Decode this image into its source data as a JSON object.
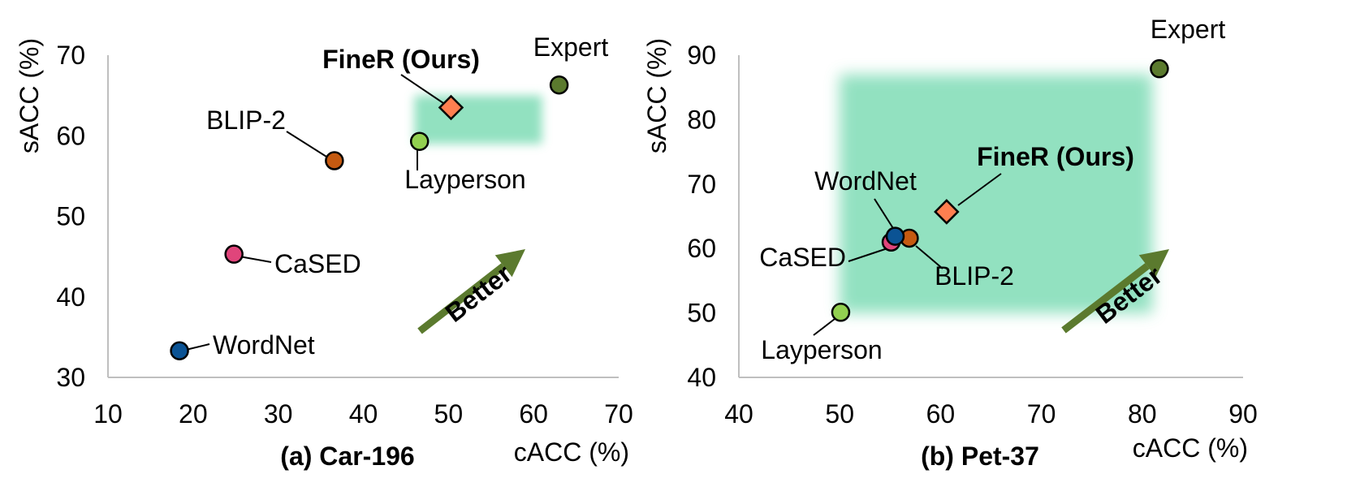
{
  "colors": {
    "expert": "#5b7a2e",
    "finer": "#ff7f50",
    "blip2": "#c55a11",
    "layperson": "#92d050",
    "cased": "#e0457b",
    "wordnet": "#0b5394",
    "region": "#7fdcb6",
    "arrow": "#5b7a2e",
    "axis": "#bfbfbf"
  },
  "chart_data": [
    {
      "type": "scatter",
      "caption": "(a) Car-196",
      "xlabel": "cACC (%)",
      "ylabel": "sACC (%)",
      "xlim": [
        10,
        70
      ],
      "ylim": [
        30,
        70
      ],
      "xticks": [
        "10",
        "20",
        "30",
        "40",
        "50",
        "60",
        "70"
      ],
      "yticks": [
        "30",
        "40",
        "50",
        "60",
        "70"
      ],
      "highlight_region": {
        "x": [
          46,
          61
        ],
        "y": [
          59,
          65
        ]
      },
      "arrow_label": "Better",
      "points": [
        {
          "name": "Expert",
          "x": 63,
          "y": 66.3,
          "marker": "circle",
          "color_key": "expert",
          "bold": false
        },
        {
          "name": "FineR (Ours)",
          "x": 50.3,
          "y": 63.5,
          "marker": "diamond",
          "color_key": "finer",
          "bold": true
        },
        {
          "name": "BLIP-2",
          "x": 36.6,
          "y": 56.9,
          "marker": "circle",
          "color_key": "blip2",
          "bold": false
        },
        {
          "name": "Layperson",
          "x": 46.6,
          "y": 59.3,
          "marker": "circle",
          "color_key": "layperson",
          "bold": false
        },
        {
          "name": "CaSED",
          "x": 24.8,
          "y": 45.3,
          "marker": "circle",
          "color_key": "cased",
          "bold": false
        },
        {
          "name": "WordNet",
          "x": 18.4,
          "y": 33.3,
          "marker": "circle",
          "color_key": "wordnet",
          "bold": false
        }
      ]
    },
    {
      "type": "scatter",
      "caption": "(b) Pet-37",
      "xlabel": "cACC (%)",
      "ylabel": "sACC (%)",
      "xlim": [
        40,
        90
      ],
      "ylim": [
        40,
        90
      ],
      "xticks": [
        "40",
        "50",
        "60",
        "70",
        "80",
        "90"
      ],
      "yticks": [
        "40",
        "50",
        "60",
        "70",
        "80",
        "90"
      ],
      "highlight_region": {
        "x": [
          50,
          81
        ],
        "y": [
          50,
          87
        ]
      },
      "arrow_label": "Better",
      "points": [
        {
          "name": "Expert",
          "x": 81.7,
          "y": 87.9,
          "marker": "circle",
          "color_key": "expert",
          "bold": false
        },
        {
          "name": "FineR (Ours)",
          "x": 60.6,
          "y": 65.7,
          "marker": "diamond",
          "color_key": "finer",
          "bold": true
        },
        {
          "name": "BLIP-2",
          "x": 56.9,
          "y": 61.6,
          "marker": "circle",
          "color_key": "blip2",
          "bold": false
        },
        {
          "name": "Layperson",
          "x": 50.1,
          "y": 50.1,
          "marker": "circle",
          "color_key": "layperson",
          "bold": false
        },
        {
          "name": "CaSED",
          "x": 55.1,
          "y": 61.0,
          "marker": "circle",
          "color_key": "cased",
          "bold": false
        },
        {
          "name": "WordNet",
          "x": 55.5,
          "y": 61.9,
          "marker": "circle",
          "color_key": "wordnet",
          "bold": false
        }
      ]
    }
  ]
}
